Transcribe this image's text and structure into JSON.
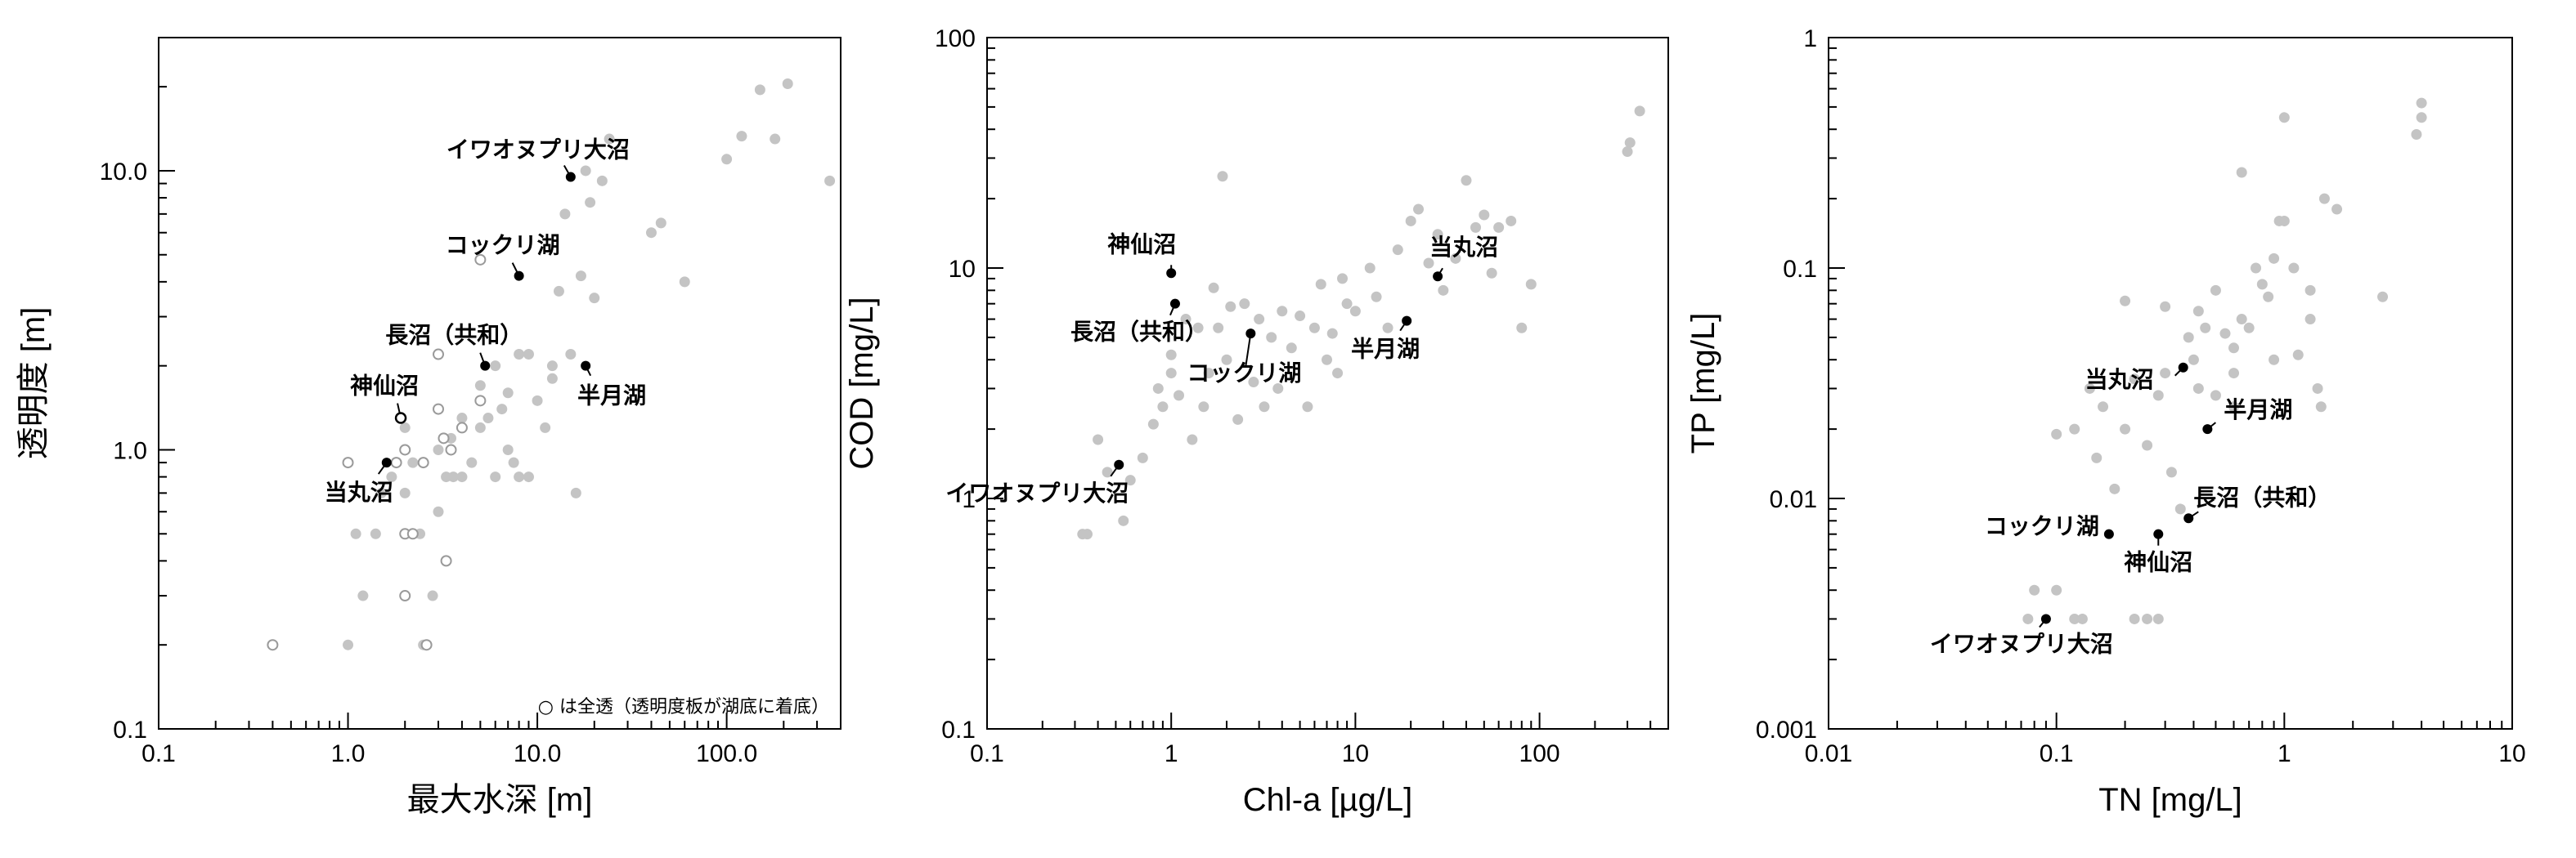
{
  "colors": {
    "background_point": "#c4c4c4",
    "highlight_point": "#000000",
    "axis": "#000000"
  },
  "chart_data": [
    {
      "type": "scatter",
      "xscale": "log",
      "yscale": "log",
      "xlim": [
        0.1,
        400
      ],
      "ylim": [
        0.1,
        30
      ],
      "xticks": [
        0.1,
        1.0,
        10.0,
        100.0
      ],
      "xtick_labels": [
        "0.1",
        "1.0",
        "10.0",
        "100.0"
      ],
      "yticks": [
        0.1,
        1.0,
        10.0
      ],
      "ytick_labels": [
        "0.1",
        "1.0",
        "10.0"
      ],
      "xlabel": "最大水深 [m]",
      "ylabel": "透明度 [m]",
      "note": "○ は全透（透明度板が湖底に着底）",
      "series": [
        {
          "style": "filled-gray",
          "points": [
            [
              1,
              0.2
            ],
            [
              1.1,
              0.5
            ],
            [
              1.2,
              0.3
            ],
            [
              1.4,
              0.5
            ],
            [
              1.5,
              0.7
            ],
            [
              1.7,
              0.8
            ],
            [
              2,
              0.7
            ],
            [
              2,
              1.2
            ],
            [
              2.2,
              0.9
            ],
            [
              2.4,
              0.5
            ],
            [
              2.5,
              0.2
            ],
            [
              2.8,
              0.3
            ],
            [
              3,
              0.6
            ],
            [
              3,
              1.0
            ],
            [
              3.3,
              0.8
            ],
            [
              3.5,
              1.1
            ],
            [
              3.6,
              0.8
            ],
            [
              4,
              0.8
            ],
            [
              4,
              1.3
            ],
            [
              4.5,
              0.9
            ],
            [
              5,
              1.2
            ],
            [
              5,
              1.7
            ],
            [
              5.5,
              1.3
            ],
            [
              6,
              2.0
            ],
            [
              6,
              0.8
            ],
            [
              6.5,
              1.4
            ],
            [
              7,
              1.6
            ],
            [
              7,
              1.0
            ],
            [
              7.5,
              0.9
            ],
            [
              8,
              2.2
            ],
            [
              8,
              0.8
            ],
            [
              9,
              2.2
            ],
            [
              9,
              0.8
            ],
            [
              10,
              1.5
            ],
            [
              11,
              1.2
            ],
            [
              12,
              1.8
            ],
            [
              12,
              2.0
            ],
            [
              13,
              3.7
            ],
            [
              14,
              7.0
            ],
            [
              15,
              2.2
            ],
            [
              16,
              0.7
            ],
            [
              17,
              4.2
            ],
            [
              18,
              10.0
            ],
            [
              19,
              7.7
            ],
            [
              20,
              3.5
            ],
            [
              22,
              9.2
            ],
            [
              24,
              13.0
            ],
            [
              40,
              6.0
            ],
            [
              45,
              6.5
            ],
            [
              60,
              4.0
            ],
            [
              100,
              11.0
            ],
            [
              120,
              13.3
            ],
            [
              150,
              19.5
            ],
            [
              180,
              13.0
            ],
            [
              210,
              20.5
            ],
            [
              350,
              9.2
            ]
          ]
        },
        {
          "style": "open-circle",
          "points": [
            [
              0.4,
              0.2
            ],
            [
              1,
              0.9
            ],
            [
              1.8,
              0.9
            ],
            [
              2,
              1.0
            ],
            [
              2,
              0.5
            ],
            [
              2,
              0.3
            ],
            [
              2.2,
              0.5
            ],
            [
              2.5,
              0.9
            ],
            [
              2.6,
              0.2
            ],
            [
              3,
              1.4
            ],
            [
              3,
              2.2
            ],
            [
              3.2,
              1.1
            ],
            [
              3.3,
              0.4
            ],
            [
              3.5,
              1.0
            ],
            [
              4,
              1.2
            ],
            [
              5,
              1.5
            ],
            [
              5,
              4.8
            ]
          ]
        }
      ],
      "annotations": [
        {
          "label": "イワオヌプリ大沼",
          "x": 15,
          "y": 9.5
        },
        {
          "label": "コックリ湖",
          "x": 8,
          "y": 4.2
        },
        {
          "label": "長沼（共和）",
          "x": 5.3,
          "y": 2.0
        },
        {
          "label": "神仙沼",
          "x": 1.9,
          "y": 1.3,
          "open": true
        },
        {
          "label": "当丸沼",
          "x": 1.6,
          "y": 0.9
        },
        {
          "label": "半月湖",
          "x": 18,
          "y": 2.0
        }
      ]
    },
    {
      "type": "scatter",
      "xscale": "log",
      "yscale": "log",
      "xlim": [
        0.1,
        500
      ],
      "ylim": [
        0.1,
        100
      ],
      "xticks": [
        0.1,
        1,
        10,
        100
      ],
      "xtick_labels": [
        "0.1",
        "1",
        "10",
        "100"
      ],
      "yticks": [
        0.1,
        1,
        10,
        100
      ],
      "ytick_labels": [
        "0.1",
        "1",
        "10",
        "100"
      ],
      "xlabel": "Chl-a [µg/L]",
      "ylabel": "COD [mg/L]",
      "series": [
        {
          "style": "filled-gray",
          "points": [
            [
              0.33,
              0.7
            ],
            [
              0.35,
              0.7
            ],
            [
              0.4,
              1.8
            ],
            [
              0.45,
              1.3
            ],
            [
              0.55,
              0.8
            ],
            [
              0.6,
              1.2
            ],
            [
              0.7,
              1.5
            ],
            [
              0.8,
              2.1
            ],
            [
              0.85,
              3.0
            ],
            [
              0.9,
              2.5
            ],
            [
              1.0,
              4.2
            ],
            [
              1.0,
              3.5
            ],
            [
              1.1,
              2.8
            ],
            [
              1.2,
              6.0
            ],
            [
              1.3,
              1.8
            ],
            [
              1.4,
              5.5
            ],
            [
              1.5,
              2.5
            ],
            [
              1.6,
              3.5
            ],
            [
              1.7,
              8.2
            ],
            [
              1.8,
              5.5
            ],
            [
              1.9,
              25.0
            ],
            [
              2.0,
              4.0
            ],
            [
              2.1,
              6.8
            ],
            [
              2.3,
              2.2
            ],
            [
              2.5,
              7.0
            ],
            [
              2.8,
              3.2
            ],
            [
              3.0,
              6.0
            ],
            [
              3.2,
              2.5
            ],
            [
              3.5,
              5.0
            ],
            [
              3.8,
              3.0
            ],
            [
              4.0,
              6.5
            ],
            [
              4.5,
              4.5
            ],
            [
              5.0,
              6.2
            ],
            [
              5.5,
              2.5
            ],
            [
              6.0,
              5.5
            ],
            [
              6.5,
              8.5
            ],
            [
              7.0,
              4.0
            ],
            [
              7.5,
              5.2
            ],
            [
              8.0,
              3.5
            ],
            [
              8.5,
              9.0
            ],
            [
              9.0,
              7.0
            ],
            [
              10.0,
              6.5
            ],
            [
              12.0,
              10.0
            ],
            [
              13.0,
              7.5
            ],
            [
              15.0,
              5.5
            ],
            [
              17.0,
              12.0
            ],
            [
              20.0,
              16.0
            ],
            [
              22.0,
              18.0
            ],
            [
              25.0,
              10.5
            ],
            [
              28.0,
              14.0
            ],
            [
              30.0,
              8.0
            ],
            [
              35.0,
              11.0
            ],
            [
              40.0,
              24.0
            ],
            [
              45.0,
              15.0
            ],
            [
              50.0,
              17.0
            ],
            [
              55.0,
              9.5
            ],
            [
              60.0,
              15.0
            ],
            [
              70.0,
              16.0
            ],
            [
              80.0,
              5.5
            ],
            [
              90.0,
              8.5
            ],
            [
              300.0,
              32.0
            ],
            [
              310.0,
              35.0
            ],
            [
              350.0,
              48.0
            ]
          ]
        }
      ],
      "annotations": [
        {
          "label": "神仙沼",
          "x": 1.0,
          "y": 9.5
        },
        {
          "label": "長沼（共和）",
          "x": 1.05,
          "y": 7.0
        },
        {
          "label": "コックリ湖",
          "x": 2.7,
          "y": 5.2
        },
        {
          "label": "イワオヌプリ大沼",
          "x": 0.52,
          "y": 1.4
        },
        {
          "label": "当丸沼",
          "x": 28,
          "y": 9.2
        },
        {
          "label": "半月湖",
          "x": 19,
          "y": 5.9
        }
      ]
    },
    {
      "type": "scatter",
      "xscale": "log",
      "yscale": "log",
      "xlim": [
        0.01,
        10
      ],
      "ylim": [
        0.001,
        1
      ],
      "xticks": [
        0.01,
        0.1,
        1,
        10
      ],
      "xtick_labels": [
        "0.01",
        "0.1",
        "1",
        "10"
      ],
      "yticks": [
        0.001,
        0.01,
        0.1,
        1
      ],
      "ytick_labels": [
        "0.001",
        "0.01",
        "0.1",
        "1"
      ],
      "xlabel": "TN [mg/L]",
      "ylabel": "TP [mg/L]",
      "series": [
        {
          "style": "filled-gray",
          "points": [
            [
              0.075,
              0.003
            ],
            [
              0.08,
              0.004
            ],
            [
              0.1,
              0.004
            ],
            [
              0.12,
              0.003
            ],
            [
              0.13,
              0.003
            ],
            [
              0.1,
              0.019
            ],
            [
              0.12,
              0.02
            ],
            [
              0.14,
              0.03
            ],
            [
              0.15,
              0.015
            ],
            [
              0.16,
              0.025
            ],
            [
              0.18,
              0.011
            ],
            [
              0.2,
              0.02
            ],
            [
              0.2,
              0.072
            ],
            [
              0.22,
              0.033
            ],
            [
              0.22,
              0.003
            ],
            [
              0.25,
              0.003
            ],
            [
              0.28,
              0.003
            ],
            [
              0.25,
              0.017
            ],
            [
              0.28,
              0.028
            ],
            [
              0.3,
              0.035
            ],
            [
              0.3,
              0.068
            ],
            [
              0.32,
              0.013
            ],
            [
              0.35,
              0.009
            ],
            [
              0.38,
              0.05
            ],
            [
              0.4,
              0.04
            ],
            [
              0.42,
              0.03
            ],
            [
              0.45,
              0.055
            ],
            [
              0.5,
              0.08
            ],
            [
              0.55,
              0.052
            ],
            [
              0.6,
              0.035
            ],
            [
              0.6,
              0.045
            ],
            [
              0.65,
              0.06
            ],
            [
              0.7,
              0.055
            ],
            [
              0.75,
              0.1
            ],
            [
              0.8,
              0.085
            ],
            [
              0.85,
              0.075
            ],
            [
              0.9,
              0.04
            ],
            [
              0.9,
              0.11
            ],
            [
              0.95,
              0.16
            ],
            [
              1.0,
              0.45
            ],
            [
              1.0,
              0.16
            ],
            [
              1.1,
              0.1
            ],
            [
              1.15,
              0.042
            ],
            [
              1.3,
              0.06
            ],
            [
              1.3,
              0.08
            ],
            [
              1.4,
              0.03
            ],
            [
              1.45,
              0.025
            ],
            [
              1.5,
              0.2
            ],
            [
              1.7,
              0.18
            ],
            [
              2.7,
              0.075
            ],
            [
              3.8,
              0.38
            ],
            [
              4.0,
              0.52
            ],
            [
              4.0,
              0.45
            ],
            [
              0.65,
              0.26
            ],
            [
              0.5,
              0.028
            ],
            [
              0.6,
              0.025
            ],
            [
              0.42,
              0.065
            ]
          ]
        }
      ],
      "annotations": [
        {
          "label": "当丸沼",
          "x": 0.36,
          "y": 0.037
        },
        {
          "label": "半月湖",
          "x": 0.46,
          "y": 0.02
        },
        {
          "label": "長沼（共和）",
          "x": 0.38,
          "y": 0.0082
        },
        {
          "label": "コックリ湖",
          "x": 0.17,
          "y": 0.007
        },
        {
          "label": "神仙沼",
          "x": 0.28,
          "y": 0.007
        },
        {
          "label": "イワオヌプリ大沼",
          "x": 0.09,
          "y": 0.003
        }
      ]
    }
  ]
}
